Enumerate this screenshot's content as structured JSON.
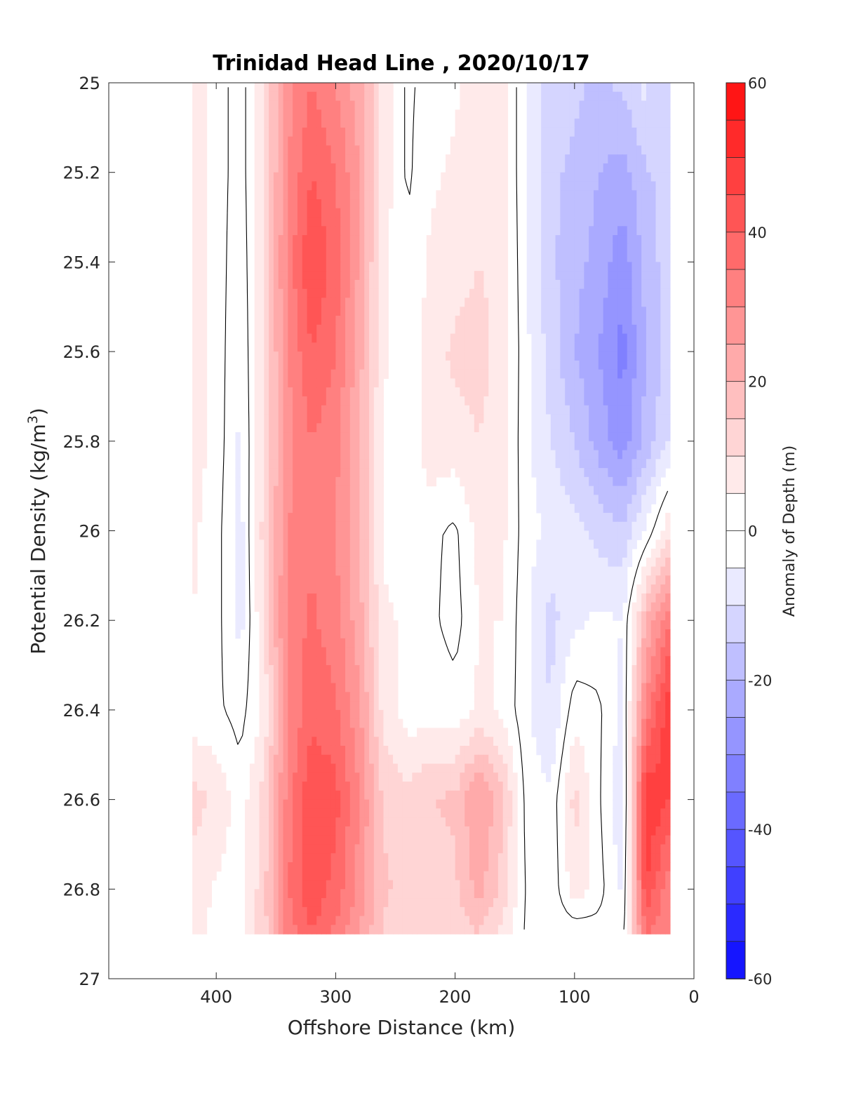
{
  "chart_data": {
    "type": "heatmap",
    "title": "Trinidad Head Line , 2020/10/17",
    "xlabel": "Offshore Distance (km)",
    "ylabel": "Potential Density (kg/m",
    "ylabel_superscript": "3",
    "ylabel_close": ")",
    "colorbar_label": "Anomaly of Depth (m)",
    "xlim": [
      490,
      0
    ],
    "x_reversed": true,
    "ylim": [
      27,
      25
    ],
    "y_reversed": true,
    "x_ticks": [
      400,
      300,
      200,
      100,
      0
    ],
    "y_ticks": [
      25,
      25.2,
      25.4,
      25.6,
      25.8,
      26,
      26.2,
      26.4,
      26.6,
      26.8,
      27
    ],
    "x_tick_labels": [
      "400",
      "300",
      "200",
      "100",
      "0"
    ],
    "y_tick_labels": [
      "25",
      "25.2",
      "25.4",
      "25.6",
      "25.8",
      "26",
      "26.2",
      "26.4",
      "26.6",
      "26.8",
      "27"
    ],
    "colorbar_range": [
      -60,
      60
    ],
    "colorbar_step": 5,
    "colorbar_ticks": [
      60,
      40,
      20,
      0,
      -20,
      -40,
      -60
    ],
    "colorbar_tick_labels": [
      "60",
      "40",
      "20",
      "0",
      "-20",
      "-40",
      "-60"
    ],
    "contour_levels": [
      0
    ],
    "data_extent": {
      "x": [
        420,
        20
      ],
      "y": [
        25,
        26.9
      ]
    },
    "grid": false,
    "colors": {
      "positive": "#ff0000",
      "negative": "#0000ff",
      "zero": "#ffffff"
    },
    "x": [
      420,
      400,
      380,
      360,
      340,
      320,
      300,
      280,
      260,
      240,
      220,
      200,
      180,
      160,
      140,
      120,
      100,
      80,
      60,
      40,
      20
    ],
    "y": [
      25,
      25.2,
      25.4,
      25.6,
      25.8,
      26,
      26.2,
      26.4,
      26.6,
      26.8,
      26.9
    ],
    "z": [
      [
        8,
        3,
        -3,
        10,
        28,
        35,
        30,
        22,
        8,
        -1,
        2,
        4,
        9,
        8,
        -6,
        -12,
        -14,
        -16,
        -14,
        -8,
        null
      ],
      [
        8,
        3,
        -3,
        10,
        30,
        40,
        35,
        25,
        8,
        -1,
        4,
        6,
        10,
        8,
        -6,
        -14,
        -16,
        -20,
        -22,
        -16,
        -12
      ],
      [
        8,
        3,
        -4,
        10,
        32,
        45,
        38,
        24,
        6,
        1,
        6,
        8,
        10,
        8,
        -5,
        -14,
        -18,
        -22,
        -28,
        -18,
        -12
      ],
      [
        8,
        3,
        -5,
        10,
        30,
        40,
        35,
        22,
        6,
        1,
        8,
        11,
        12,
        8,
        -4,
        -12,
        -20,
        -25,
        -32,
        -20,
        -12
      ],
      [
        8,
        3,
        -6,
        10,
        28,
        35,
        32,
        20,
        4,
        1,
        9,
        8,
        10,
        7,
        -4,
        -10,
        -15,
        -22,
        -28,
        -18,
        -10
      ],
      [
        6,
        2,
        -7,
        12,
        30,
        34,
        30,
        20,
        4,
        2,
        1,
        -1,
        7,
        6,
        -3,
        -6,
        -8,
        -12,
        -14,
        -4,
        10
      ],
      [
        5,
        2,
        -7,
        10,
        32,
        36,
        32,
        22,
        6,
        4,
        1,
        -2,
        5,
        5,
        -4,
        -12,
        -6,
        -4,
        -5,
        20,
        35
      ],
      [
        2,
        1,
        -2,
        6,
        30,
        38,
        36,
        26,
        8,
        2,
        3,
        2,
        6,
        4,
        -4,
        -10,
        3,
        1,
        -6,
        32,
        50
      ],
      [
        12,
        9,
        2,
        12,
        32,
        45,
        42,
        30,
        14,
        12,
        15,
        16,
        26,
        16,
        -2,
        -4,
        12,
        1,
        -10,
        50,
        45
      ],
      [
        8,
        4,
        3,
        13,
        35,
        44,
        38,
        28,
        16,
        13,
        12,
        14,
        22,
        13,
        -1,
        -4,
        8,
        2,
        -6,
        45,
        30
      ],
      [
        6,
        4,
        3,
        13,
        32,
        40,
        34,
        25,
        14,
        12,
        10,
        12,
        15,
        8,
        -1,
        -4,
        -4,
        -2,
        -3,
        35,
        30
      ]
    ]
  }
}
